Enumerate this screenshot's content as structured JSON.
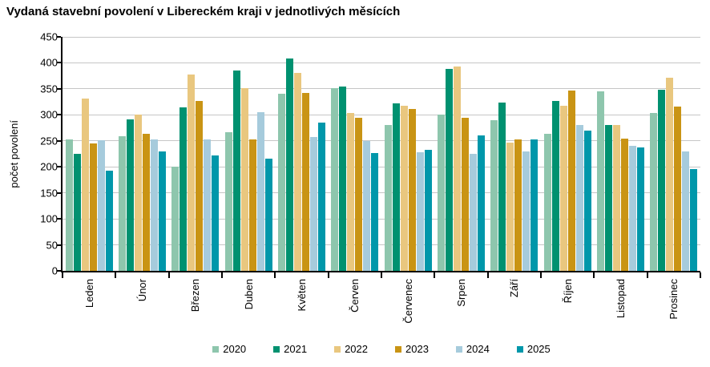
{
  "title": "Vydaná stavební povolení v Libereckém kraji v jednotlivých měsících",
  "chart_data": {
    "type": "bar",
    "title": "Vydaná stavební povolení v Libereckém kraji v jednotlivých měsících",
    "xlabel": "",
    "ylabel": "počet povolení",
    "ylim": [
      0,
      450
    ],
    "y_tick_step": 50,
    "y_ticks": [
      0,
      50,
      100,
      150,
      200,
      250,
      300,
      350,
      400,
      450
    ],
    "grid": true,
    "legend_position": "bottom",
    "categories": [
      "Leden",
      "Únor",
      "Březen",
      "Duben",
      "Květen",
      "Červen",
      "Červenec",
      "Srpen",
      "Září",
      "Říjen",
      "Listopad",
      "Prosinec"
    ],
    "series": [
      {
        "name": "2020",
        "color": "#8ec6ad",
        "values": [
          253,
          259,
          200,
          266,
          341,
          352,
          281,
          300,
          290,
          264,
          345,
          303
        ]
      },
      {
        "name": "2021",
        "color": "#009170",
        "values": [
          225,
          292,
          314,
          385,
          409,
          354,
          322,
          388,
          324,
          327,
          281,
          349
        ]
      },
      {
        "name": "2022",
        "color": "#e9c77f",
        "values": [
          332,
          300,
          377,
          352,
          381,
          303,
          318,
          393,
          246,
          318,
          281,
          372
        ]
      },
      {
        "name": "2023",
        "color": "#c99414",
        "values": [
          245,
          263,
          327,
          252,
          342,
          295,
          311,
          295,
          253,
          347,
          255,
          316
        ]
      },
      {
        "name": "2024",
        "color": "#a6cbdc",
        "values": [
          251,
          252,
          253,
          305,
          257,
          250,
          228,
          225,
          229,
          280,
          241,
          230
        ]
      },
      {
        "name": "2025",
        "color": "#0097aa",
        "values": [
          193,
          230,
          222,
          215,
          285,
          226,
          232,
          261,
          253,
          270,
          238,
          195
        ]
      }
    ]
  },
  "colors": {
    "gridline": "#c6c6c6",
    "axis": "#000000",
    "background": "#ffffff"
  }
}
